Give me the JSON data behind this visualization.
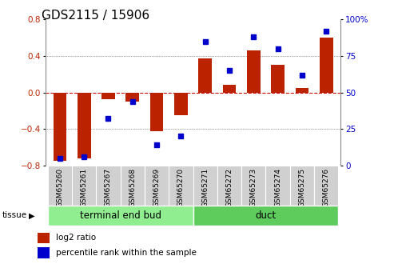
{
  "title": "GDS2115 / 15906",
  "samples": [
    "GSM65260",
    "GSM65261",
    "GSM65267",
    "GSM65268",
    "GSM65269",
    "GSM65270",
    "GSM65271",
    "GSM65272",
    "GSM65273",
    "GSM65274",
    "GSM65275",
    "GSM65276"
  ],
  "log2_ratio": [
    -0.75,
    -0.72,
    -0.07,
    -0.1,
    -0.42,
    -0.25,
    0.37,
    0.08,
    0.46,
    0.3,
    0.05,
    0.6
  ],
  "percentile_rank": [
    5,
    6,
    32,
    44,
    14,
    20,
    85,
    65,
    88,
    80,
    62,
    92
  ],
  "groups": [
    {
      "label": "terminal end bud",
      "start": 0,
      "end": 6,
      "color": "#90ee90"
    },
    {
      "label": "duct",
      "start": 6,
      "end": 12,
      "color": "#5dcc5d"
    }
  ],
  "tissue_label": "tissue",
  "ylim_left": [
    -0.8,
    0.8
  ],
  "ylim_right": [
    0,
    100
  ],
  "yticks_left": [
    -0.8,
    -0.4,
    0.0,
    0.4,
    0.8
  ],
  "yticks_right": [
    0,
    25,
    50,
    75,
    100
  ],
  "bar_color": "#bb2200",
  "dot_color": "#0000cc",
  "hline_color": "#cc0000",
  "grid_color": "#444444",
  "bg_color": "#ffffff",
  "sample_box_color": "#d0d0d0",
  "legend_log2_label": "log2 ratio",
  "legend_pct_label": "percentile rank within the sample",
  "title_fontsize": 11,
  "tick_fontsize": 7.5,
  "label_fontsize": 6.5,
  "legend_fontsize": 7.5,
  "group_label_fontsize": 8.5
}
